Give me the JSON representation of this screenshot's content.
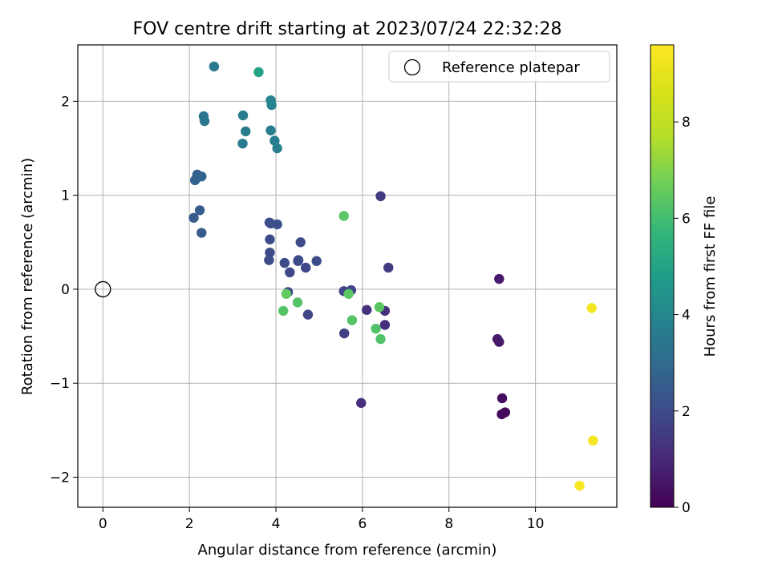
{
  "chart_data": {
    "type": "scatter",
    "title": "FOV centre drift starting at 2023/07/24 22:32:28",
    "xlabel": "Angular distance from reference (arcmin)",
    "ylabel": "Rotation from reference (arcmin)",
    "xlim": [
      -0.58,
      11.88
    ],
    "ylim": [
      -2.32,
      2.6
    ],
    "xticks": [
      0,
      2,
      4,
      6,
      8,
      10
    ],
    "yticks": [
      -2,
      -1,
      0,
      1,
      2
    ],
    "grid": true,
    "colormap": "viridis",
    "colorbar": {
      "label": "Hours from first FF file",
      "range": [
        0,
        9.6
      ],
      "ticks": [
        0,
        2,
        4,
        6,
        8
      ]
    },
    "legend": {
      "placement": "top-right",
      "entries": [
        {
          "label": "Reference platepar",
          "marker": "open-circle"
        }
      ]
    },
    "reference_point": {
      "x": 0,
      "y": 0
    },
    "points": [
      {
        "x": 2.57,
        "y": 2.37,
        "c": 3.5
      },
      {
        "x": 3.6,
        "y": 2.31,
        "c": 5.0
      },
      {
        "x": 2.33,
        "y": 1.84,
        "c": 3.4
      },
      {
        "x": 2.35,
        "y": 1.79,
        "c": 3.4
      },
      {
        "x": 3.24,
        "y": 1.85,
        "c": 3.6
      },
      {
        "x": 3.88,
        "y": 2.01,
        "c": 3.9
      },
      {
        "x": 3.9,
        "y": 1.96,
        "c": 3.9
      },
      {
        "x": 3.3,
        "y": 1.68,
        "c": 3.6
      },
      {
        "x": 3.23,
        "y": 1.55,
        "c": 3.6
      },
      {
        "x": 3.88,
        "y": 1.69,
        "c": 3.7
      },
      {
        "x": 3.97,
        "y": 1.58,
        "c": 3.7
      },
      {
        "x": 4.03,
        "y": 1.5,
        "c": 3.7
      },
      {
        "x": 2.18,
        "y": 1.22,
        "c": 2.7
      },
      {
        "x": 2.28,
        "y": 1.2,
        "c": 2.7
      },
      {
        "x": 2.13,
        "y": 1.16,
        "c": 2.7
      },
      {
        "x": 2.24,
        "y": 0.84,
        "c": 2.5
      },
      {
        "x": 2.1,
        "y": 0.76,
        "c": 2.5
      },
      {
        "x": 2.28,
        "y": 0.6,
        "c": 2.5
      },
      {
        "x": 6.42,
        "y": 0.99,
        "c": 1.5
      },
      {
        "x": 5.57,
        "y": 0.78,
        "c": 6.4
      },
      {
        "x": 3.88,
        "y": 0.7,
        "c": 2.1
      },
      {
        "x": 3.85,
        "y": 0.71,
        "c": 2.1
      },
      {
        "x": 4.03,
        "y": 0.69,
        "c": 2.1
      },
      {
        "x": 3.86,
        "y": 0.53,
        "c": 2.0
      },
      {
        "x": 4.57,
        "y": 0.5,
        "c": 2.0
      },
      {
        "x": 3.86,
        "y": 0.39,
        "c": 2.0
      },
      {
        "x": 3.84,
        "y": 0.31,
        "c": 2.0
      },
      {
        "x": 4.2,
        "y": 0.28,
        "c": 2.0
      },
      {
        "x": 4.51,
        "y": 0.3,
        "c": 2.0
      },
      {
        "x": 4.52,
        "y": 0.31,
        "c": 2.0
      },
      {
        "x": 4.94,
        "y": 0.3,
        "c": 2.0
      },
      {
        "x": 4.69,
        "y": 0.23,
        "c": 1.9
      },
      {
        "x": 6.6,
        "y": 0.23,
        "c": 1.5
      },
      {
        "x": 4.32,
        "y": 0.18,
        "c": 1.9
      },
      {
        "x": 9.16,
        "y": 0.11,
        "c": 0.6
      },
      {
        "x": 4.28,
        "y": -0.03,
        "c": 1.9
      },
      {
        "x": 4.24,
        "y": -0.05,
        "c": 6.5
      },
      {
        "x": 5.57,
        "y": -0.02,
        "c": 1.8
      },
      {
        "x": 5.74,
        "y": -0.01,
        "c": 1.8
      },
      {
        "x": 5.68,
        "y": -0.05,
        "c": 6.4
      },
      {
        "x": 4.5,
        "y": -0.14,
        "c": 6.3
      },
      {
        "x": 4.17,
        "y": -0.23,
        "c": 6.3
      },
      {
        "x": 4.74,
        "y": -0.27,
        "c": 1.8
      },
      {
        "x": 6.1,
        "y": -0.22,
        "c": 1.2
      },
      {
        "x": 6.52,
        "y": -0.23,
        "c": 1.2
      },
      {
        "x": 6.39,
        "y": -0.19,
        "c": 6.4
      },
      {
        "x": 5.76,
        "y": -0.33,
        "c": 6.3
      },
      {
        "x": 6.52,
        "y": -0.38,
        "c": 1.2
      },
      {
        "x": 6.31,
        "y": -0.42,
        "c": 6.2
      },
      {
        "x": 5.58,
        "y": -0.47,
        "c": 1.6
      },
      {
        "x": 6.42,
        "y": -0.53,
        "c": 6.2
      },
      {
        "x": 9.12,
        "y": -0.53,
        "c": 0.6
      },
      {
        "x": 9.16,
        "y": -0.56,
        "c": 0.6
      },
      {
        "x": 11.3,
        "y": -0.2,
        "c": 9.4
      },
      {
        "x": 5.97,
        "y": -1.21,
        "c": 1.1
      },
      {
        "x": 9.23,
        "y": -1.16,
        "c": 0.3
      },
      {
        "x": 9.22,
        "y": -1.33,
        "c": 0.2
      },
      {
        "x": 9.3,
        "y": -1.31,
        "c": 0.2
      },
      {
        "x": 11.33,
        "y": -1.61,
        "c": 9.4
      },
      {
        "x": 11.02,
        "y": -2.09,
        "c": 9.5
      }
    ]
  }
}
